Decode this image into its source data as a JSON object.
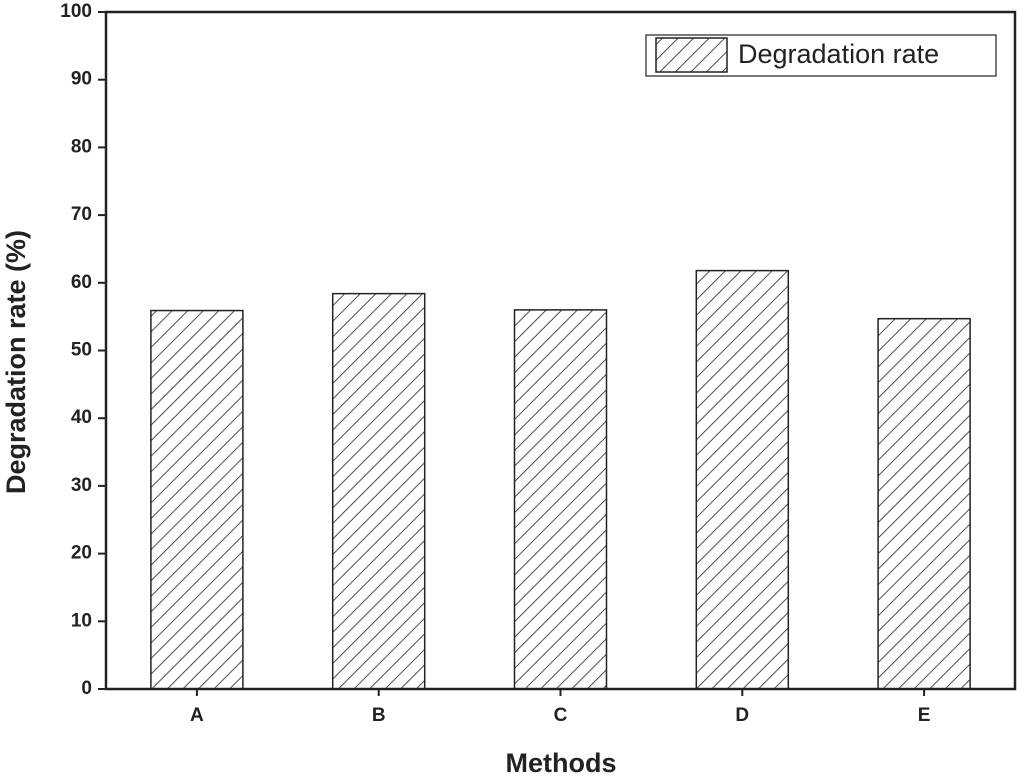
{
  "chart_data": {
    "type": "bar",
    "x_label": "Methods",
    "y_label": "Degradation rate (%)",
    "categories": [
      "A",
      "B",
      "C",
      "D",
      "E"
    ],
    "series": [
      {
        "name": "Degradation rate",
        "color": "#222222",
        "values": [
          55.9,
          58.4,
          56.0,
          61.8,
          54.7
        ]
      }
    ],
    "ylim": [
      0,
      100
    ],
    "yticks": [
      0,
      10,
      20,
      30,
      40,
      50,
      60,
      70,
      80,
      90,
      100
    ],
    "hatch": true,
    "legend": "upper right",
    "grid": false
  }
}
